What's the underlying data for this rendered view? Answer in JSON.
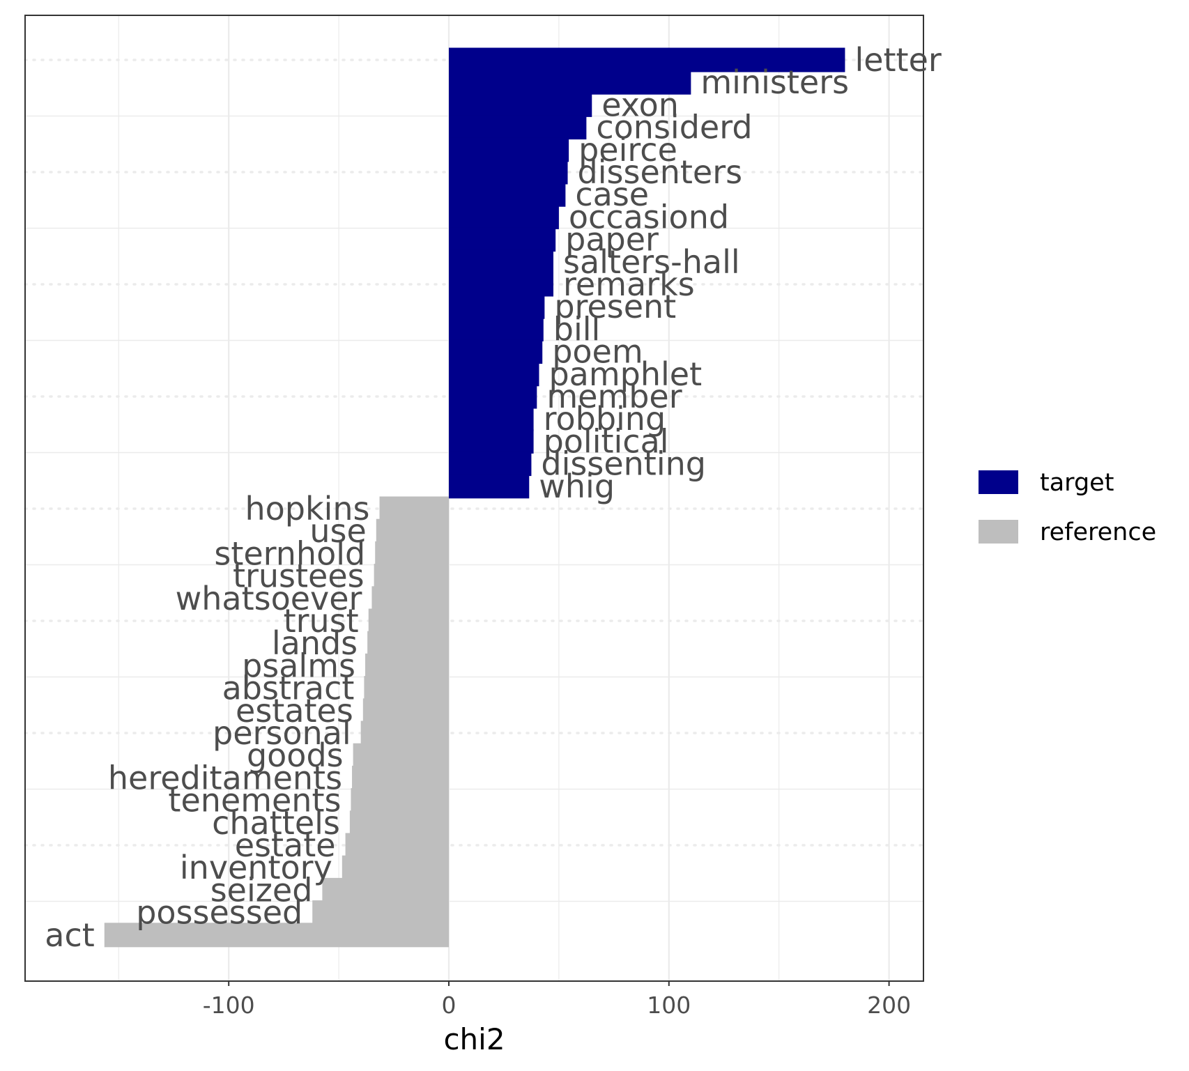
{
  "chart_data": {
    "type": "bar",
    "orientation": "horizontal",
    "xlabel": "chi2",
    "ylabel": "",
    "xlim": [
      -192,
      216
    ],
    "xticks": [
      -100,
      0,
      100,
      200
    ],
    "grid": true,
    "legend_position": "right",
    "series": [
      {
        "name": "target",
        "color": "#00008B",
        "bars": [
          {
            "label": "letter",
            "value": 180
          },
          {
            "label": "ministers",
            "value": 110
          },
          {
            "label": "exon",
            "value": 65
          },
          {
            "label": "considerd",
            "value": 62.5
          },
          {
            "label": "peirce",
            "value": 54.5
          },
          {
            "label": "dissenters",
            "value": 54
          },
          {
            "label": "case",
            "value": 53
          },
          {
            "label": "occasiond",
            "value": 50
          },
          {
            "label": "paper",
            "value": 48.5
          },
          {
            "label": "salters-hall",
            "value": 47.5
          },
          {
            "label": "remarks",
            "value": 47.5
          },
          {
            "label": "present",
            "value": 43.5
          },
          {
            "label": "bill",
            "value": 43
          },
          {
            "label": "poem",
            "value": 42.5
          },
          {
            "label": "pamphlet",
            "value": 41
          },
          {
            "label": "member",
            "value": 40
          },
          {
            "label": "robbing",
            "value": 38.5
          },
          {
            "label": "political",
            "value": 38.5
          },
          {
            "label": "dissenting",
            "value": 37.5
          },
          {
            "label": "whig",
            "value": 36.5
          }
        ]
      },
      {
        "name": "reference",
        "color": "#BEBEBE",
        "bars": [
          {
            "label": "hopkins",
            "value": -31.5
          },
          {
            "label": "use",
            "value": -33
          },
          {
            "label": "sternhold",
            "value": -33.5
          },
          {
            "label": "trustees",
            "value": -34
          },
          {
            "label": "whatsoever",
            "value": -35
          },
          {
            "label": "trust",
            "value": -36.5
          },
          {
            "label": "lands",
            "value": -37
          },
          {
            "label": "psalms",
            "value": -38
          },
          {
            "label": "abstract",
            "value": -38.5
          },
          {
            "label": "estates",
            "value": -39
          },
          {
            "label": "personal",
            "value": -40
          },
          {
            "label": "goods",
            "value": -43.5
          },
          {
            "label": "hereditaments",
            "value": -44
          },
          {
            "label": "tenements",
            "value": -44.5
          },
          {
            "label": "chattels",
            "value": -45
          },
          {
            "label": "estate",
            "value": -47
          },
          {
            "label": "inventory",
            "value": -48.5
          },
          {
            "label": "seized",
            "value": -57.5
          },
          {
            "label": "possessed",
            "value": -62
          },
          {
            "label": "act",
            "value": -156.5
          }
        ]
      }
    ]
  }
}
